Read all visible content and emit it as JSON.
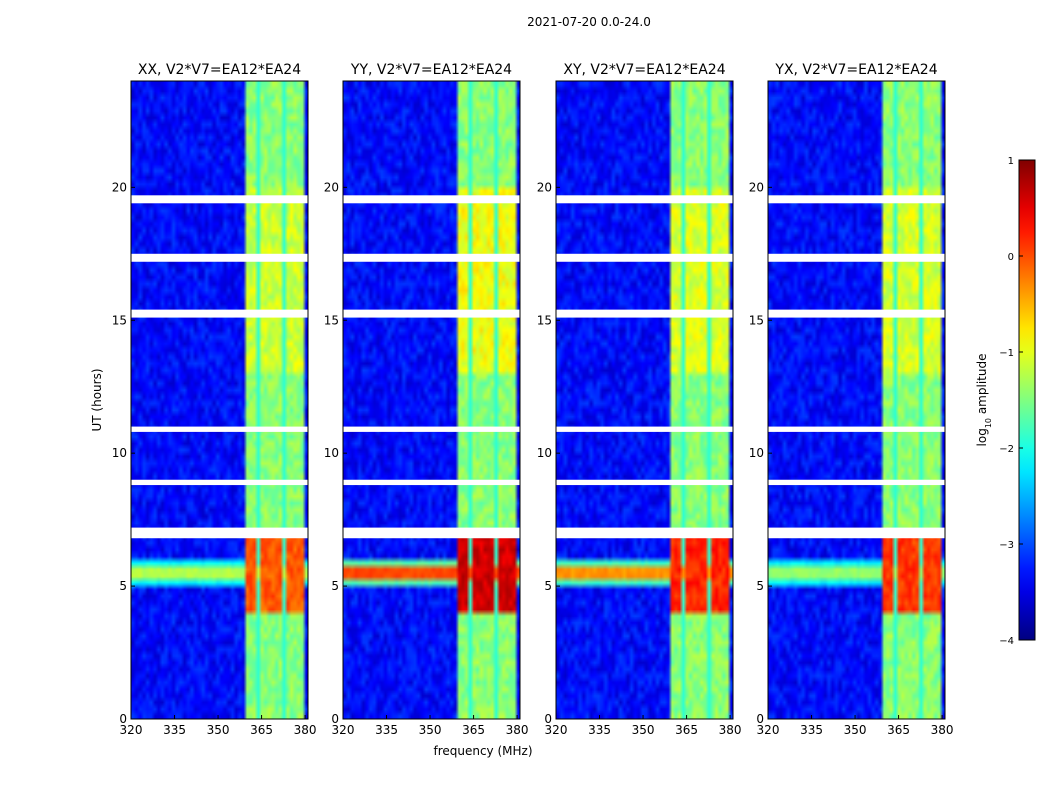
{
  "chart_data": {
    "type": "heatmap",
    "title": "2021-07-20 0.0-24.0",
    "xlabel": "frequency (MHz)",
    "ylabel": "UT (hours)",
    "xlim": [
      320,
      381
    ],
    "ylim": [
      0,
      24
    ],
    "xticks": [
      "320",
      "335",
      "350",
      "365",
      "380"
    ],
    "xtick_values": [
      320,
      335,
      350,
      365,
      380
    ],
    "yticks": [
      "0",
      "5",
      "10",
      "15",
      "20"
    ],
    "ytick_values": [
      0,
      5,
      10,
      15,
      20
    ],
    "panels": [
      {
        "title": "XX, V2*V7=EA12*EA24",
        "pol": "XX",
        "band_peak": 0.25,
        "rfi_peak": -0.8
      },
      {
        "title": "YY, V2*V7=EA12*EA24",
        "pol": "YY",
        "band_peak": 0.9,
        "rfi_peak": 0.9
      },
      {
        "title": "XY, V2*V7=EA12*EA24",
        "pol": "XY",
        "band_peak": 0.5,
        "rfi_peak": 0.4
      },
      {
        "title": "YX, V2*V7=EA12*EA24",
        "pol": "YX",
        "band_peak": 0.4,
        "rfi_peak": -1.0
      }
    ],
    "features": {
      "strong_band_freq_mhz": [
        360,
        380
      ],
      "rfi_time_hours": [
        5.0,
        6.0
      ],
      "flagged_time_hours": [
        [
          6.8,
          7.2
        ],
        [
          8.8,
          9.0
        ],
        [
          10.8,
          11.0
        ],
        [
          15.1,
          15.4
        ],
        [
          17.2,
          17.5
        ],
        [
          19.4,
          19.7
        ]
      ]
    },
    "colorbar": {
      "label": "log10 amplitude",
      "label_main": "log",
      "label_sub": "10",
      "label_rest": " amplitude",
      "min": -4,
      "max": 1,
      "ticks": [
        "1",
        "0",
        "−1",
        "−2",
        "−3",
        "−4"
      ],
      "tick_values": [
        1,
        0,
        -1,
        -2,
        -3,
        -4
      ],
      "colormap": "jet"
    }
  }
}
